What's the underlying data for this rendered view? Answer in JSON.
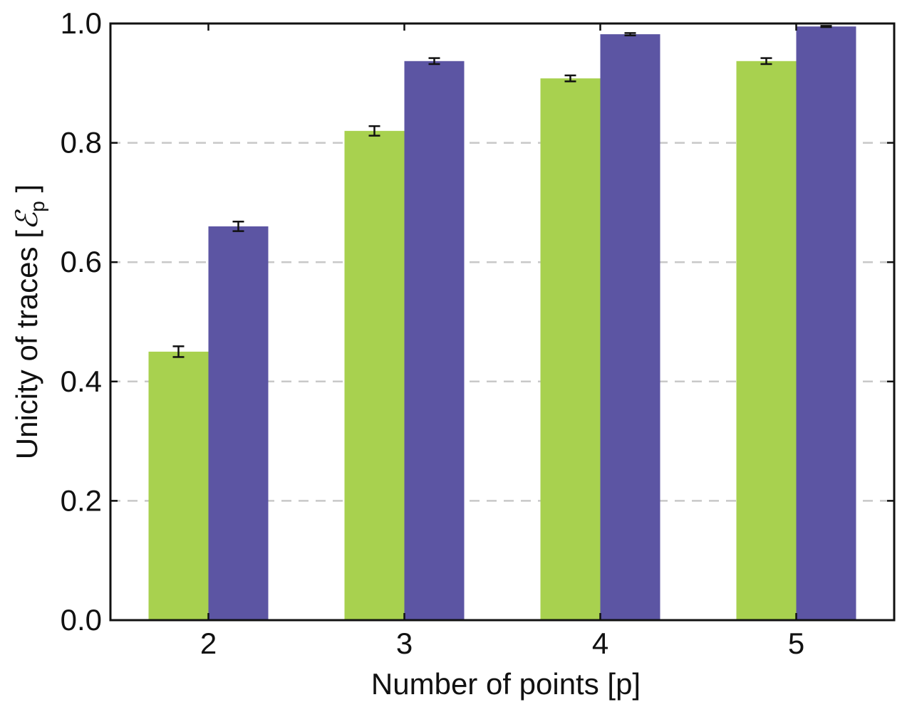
{
  "chart_data": {
    "type": "bar",
    "categories": [
      "2",
      "3",
      "4",
      "5"
    ],
    "series": [
      {
        "values": [
          0.45,
          0.82,
          0.908,
          0.937
        ],
        "errors": [
          0.009,
          0.008,
          0.005,
          0.005
        ],
        "color": "#a8d14f"
      },
      {
        "values": [
          0.66,
          0.937,
          0.982,
          0.995
        ],
        "errors": [
          0.008,
          0.005,
          0.002,
          0.001
        ],
        "color": "#5c55a3"
      }
    ],
    "xlabel": "Number of points [p]",
    "ylabel_main": "Unicity of traces [",
    "ylabel_symbol": "ℰ",
    "ylabel_subscript": "p",
    "ylabel_close": " ]",
    "ylim": [
      0.0,
      1.0
    ],
    "yticks": [
      "0.0",
      "0.2",
      "0.4",
      "0.6",
      "0.8",
      "1.0"
    ],
    "grid": "horizontal dashed",
    "grid_color": "#c8c8c8",
    "legend": "none"
  }
}
